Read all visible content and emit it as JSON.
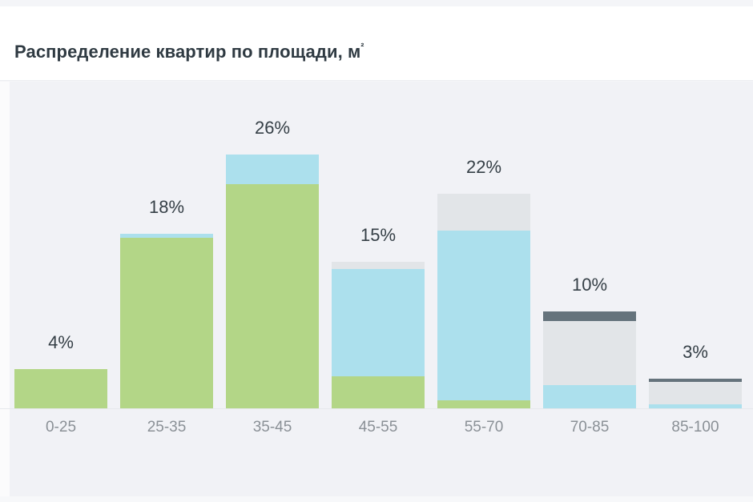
{
  "header": {
    "title": "Распределение квартир по площади, м",
    "title_superscript": "²"
  },
  "colors": {
    "green": "#b3d687",
    "blue": "#ace0ed",
    "light_grey": "#e2e5e8",
    "dark_grey": "#65737c",
    "panel_bg": "#f1f2f6"
  },
  "chart_data": {
    "type": "bar",
    "stacked": true,
    "title": "Распределение квартир по площади, м²",
    "xlabel": "",
    "ylabel": "",
    "categories": [
      "0-25",
      "25-35",
      "35-45",
      "45-55",
      "55-70",
      "70-85",
      "85-100"
    ],
    "totals": [
      4,
      18,
      26,
      15,
      22,
      10,
      3
    ],
    "total_labels": [
      "4%",
      "18%",
      "26%",
      "15%",
      "22%",
      "10%",
      "3%"
    ],
    "series": [
      {
        "name": "green",
        "color": "#b3d687",
        "values": [
          4,
          17.5,
          23,
          3.3,
          0.8,
          0,
          0
        ]
      },
      {
        "name": "blue",
        "color": "#ace0ed",
        "values": [
          0,
          0.4,
          3,
          11,
          17.4,
          2.4,
          0.4
        ]
      },
      {
        "name": "light_grey",
        "color": "#e2e5e8",
        "values": [
          0,
          0,
          0,
          0.7,
          3.8,
          6.6,
          2.3
        ]
      },
      {
        "name": "dark_grey",
        "color": "#65737c",
        "values": [
          0,
          0,
          0,
          0,
          0,
          1,
          0.3
        ]
      }
    ],
    "ylim": [
      0,
      26
    ],
    "grid": false,
    "legend": "none"
  }
}
